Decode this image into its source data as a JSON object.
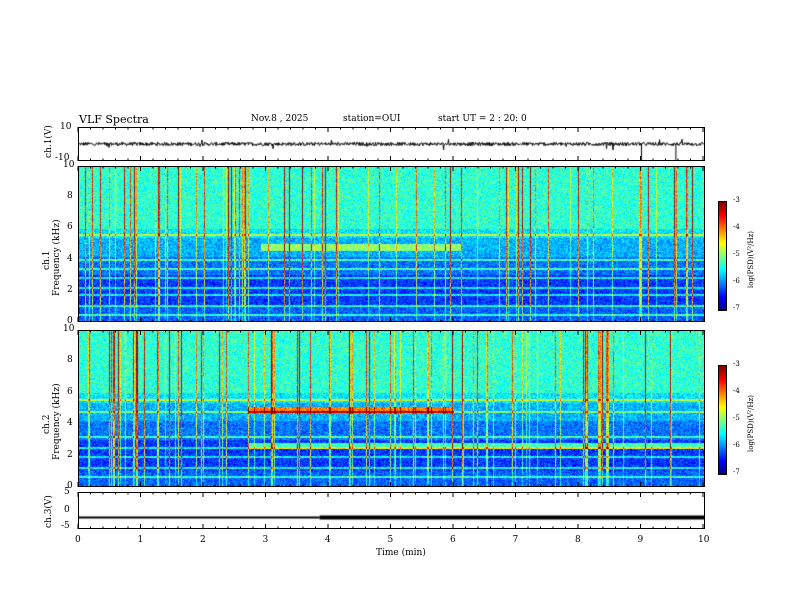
{
  "header": {
    "title": "VLF Spectra",
    "date": "Nov.8 , 2025",
    "station": "station=OUI",
    "start": "start UT = 2 : 20: 0"
  },
  "chart_data": [
    {
      "type": "line",
      "name": "ch1-waveform",
      "ylabel": "ch.1(V)",
      "ylim": [
        -10,
        10
      ],
      "y_ticks": [
        "10",
        "-10"
      ],
      "description_values": {
        "baseline_v": 0
      }
    },
    {
      "type": "heatmap",
      "name": "ch1-spectrogram",
      "ylabel": "ch.1\nFrequency (kHz)",
      "ylabel_line1": "ch.1",
      "ylabel_line2": "Frequency (kHz)",
      "ylim": [
        0,
        10
      ],
      "y_ticks": [
        "0",
        "2",
        "4",
        "6",
        "8",
        "10"
      ],
      "colorbar": {
        "label": "log(PSD)(V²/Hz)",
        "ticks": [
          "-3",
          "-4",
          "-5",
          "-6",
          "-7"
        ],
        "range": [
          -7,
          -3
        ]
      },
      "bands_khz": [
        0.4,
        1.0,
        1.7,
        2.2,
        2.8,
        3.4,
        4.0,
        5.6
      ]
    },
    {
      "type": "heatmap",
      "name": "ch2-spectrogram",
      "ylabel_line1": "ch.2",
      "ylabel_line2": "Frequency (kHz)",
      "ylim": [
        0,
        10
      ],
      "y_ticks": [
        "0",
        "2",
        "4",
        "6",
        "8",
        "10"
      ],
      "colorbar": {
        "label": "log(PSD)(V²/Hz)",
        "ticks": [
          "-3",
          "-4",
          "-5",
          "-6",
          "-7"
        ],
        "range": [
          -7,
          -3
        ]
      },
      "bands_khz": [
        0.6,
        1.2,
        1.9,
        2.5,
        3.2,
        4.8,
        5.6
      ]
    },
    {
      "type": "line",
      "name": "ch3-level",
      "ylabel": "ch.3(V)",
      "ylim": [
        -5,
        5
      ],
      "y_ticks": [
        "5",
        "0",
        "-5"
      ],
      "step_x_min": 3.85,
      "level_v": -2.0
    }
  ],
  "xaxis": {
    "label": "Time (min)",
    "range": [
      0,
      10
    ],
    "ticks": [
      "0",
      "1",
      "2",
      "3",
      "4",
      "5",
      "6",
      "7",
      "8",
      "9",
      "10"
    ]
  }
}
